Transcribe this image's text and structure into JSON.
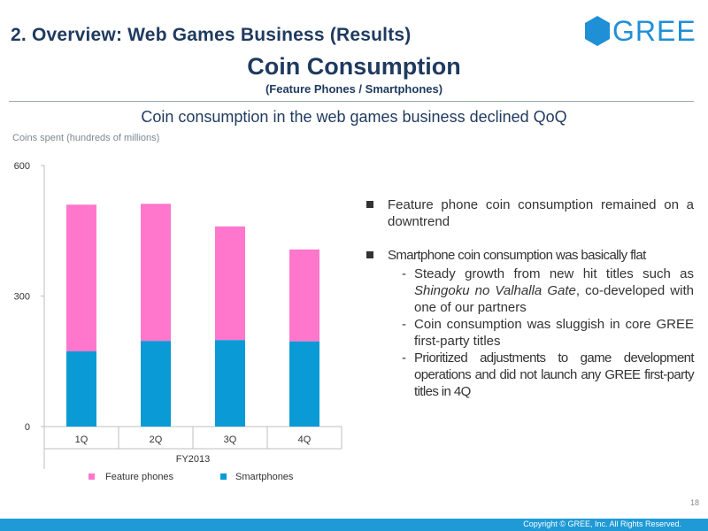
{
  "header": {
    "section_title": "2. Overview: Web Games Business (Results)",
    "logo_text": "GREE",
    "title": "Coin Consumption",
    "subtitle": "(Feature Phones / Smartphones)",
    "headline": "Coin consumption in the web games business declined QoQ"
  },
  "colors": {
    "feature_phones": "#FF77CC",
    "smartphones": "#0A9BD6",
    "brand": "#1F8FD6",
    "footer": "#1F9AD6"
  },
  "chart_data": {
    "type": "bar",
    "stacked": true,
    "ylabel": "Coins spent (hundreds of millions)",
    "xlabel": "FY2013",
    "categories": [
      "1Q",
      "2Q",
      "3Q",
      "4Q"
    ],
    "ylim": [
      0,
      600
    ],
    "yticks": [
      0,
      300,
      600
    ],
    "series": [
      {
        "name": "Smartphones",
        "values": [
          173,
          197,
          199,
          196
        ]
      },
      {
        "name": "Feature phones",
        "values": [
          337,
          315,
          261,
          211
        ]
      }
    ],
    "legend": [
      "Feature phones",
      "Smartphones"
    ],
    "legend_position": "bottom"
  },
  "bullets": {
    "item1": "Feature phone coin consumption remained on a downtrend",
    "item2": "Smartphone coin consumption was basically flat",
    "sub1_a": "Steady growth from new hit titles such as ",
    "sub1_italic": "Shingoku no Valhalla Gate",
    "sub1_b": ", co-developed with one of our partners",
    "sub2": "Coin consumption was sluggish in core GREE first-party titles",
    "sub3": "Prioritized adjustments to game development operations and did not launch any GREE first-party titles in 4Q"
  },
  "footer": {
    "page_number": "18",
    "copyright": "Copyright © GREE, Inc. All Rights Reserved."
  }
}
